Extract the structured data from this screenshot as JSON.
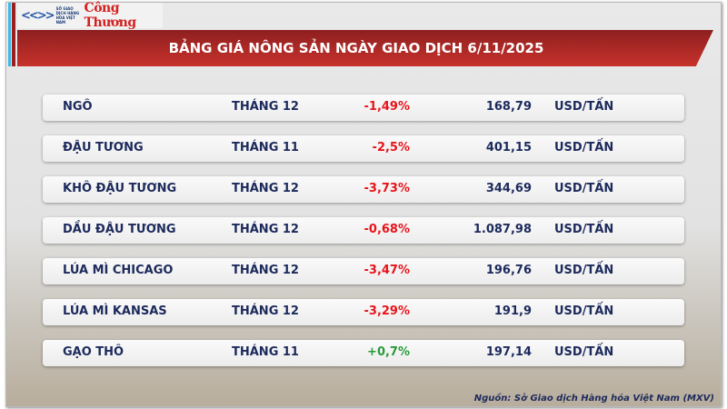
{
  "logos": {
    "exchange": "SỞ GIAO DỊCH HÀNG HÓA VIỆT NAM",
    "newspaper": "Công Thương"
  },
  "title": "BẢNG GIÁ NÔNG SẢN NGÀY GIAO DỊCH 6/11/2025",
  "rows": [
    {
      "name": "NGÔ",
      "month": "THÁNG 12",
      "change": "-1,49%",
      "price": "168,79",
      "unit": "USD/TẤN",
      "direction": "down"
    },
    {
      "name": "ĐẬU TƯƠNG",
      "month": "THÁNG 11",
      "change": "-2,5%",
      "price": "401,15",
      "unit": "USD/TẤN",
      "direction": "down"
    },
    {
      "name": "KHÔ ĐẬU TƯƠNG",
      "month": "THÁNG 12",
      "change": "-3,73%",
      "price": "344,69",
      "unit": "USD/TẤN",
      "direction": "down"
    },
    {
      "name": "DẦU ĐẬU TƯƠNG",
      "month": "THÁNG 12",
      "change": "-0,68%",
      "price": "1.087,98",
      "unit": "USD/TẤN",
      "direction": "down"
    },
    {
      "name": "LÚA MÌ CHICAGO",
      "month": "THÁNG 12",
      "change": "-3,47%",
      "price": "196,76",
      "unit": "USD/TẤN",
      "direction": "down"
    },
    {
      "name": "LÚA MÌ KANSAS",
      "month": "THÁNG 12",
      "change": "-3,29%",
      "price": "191,9",
      "unit": "USD/TẤN",
      "direction": "down"
    },
    {
      "name": "GẠO THÔ",
      "month": "THÁNG 11",
      "change": "+0,7%",
      "price": "197,14",
      "unit": "USD/TẤN",
      "direction": "up"
    }
  ],
  "colors": {
    "down": "#e8141b",
    "up": "#2a9a3a",
    "banner": "#b02a26",
    "text": "#1c2a5c"
  },
  "source": "Nguồn: Sở Giao dịch Hàng hóa Việt Nam (MXV)"
}
